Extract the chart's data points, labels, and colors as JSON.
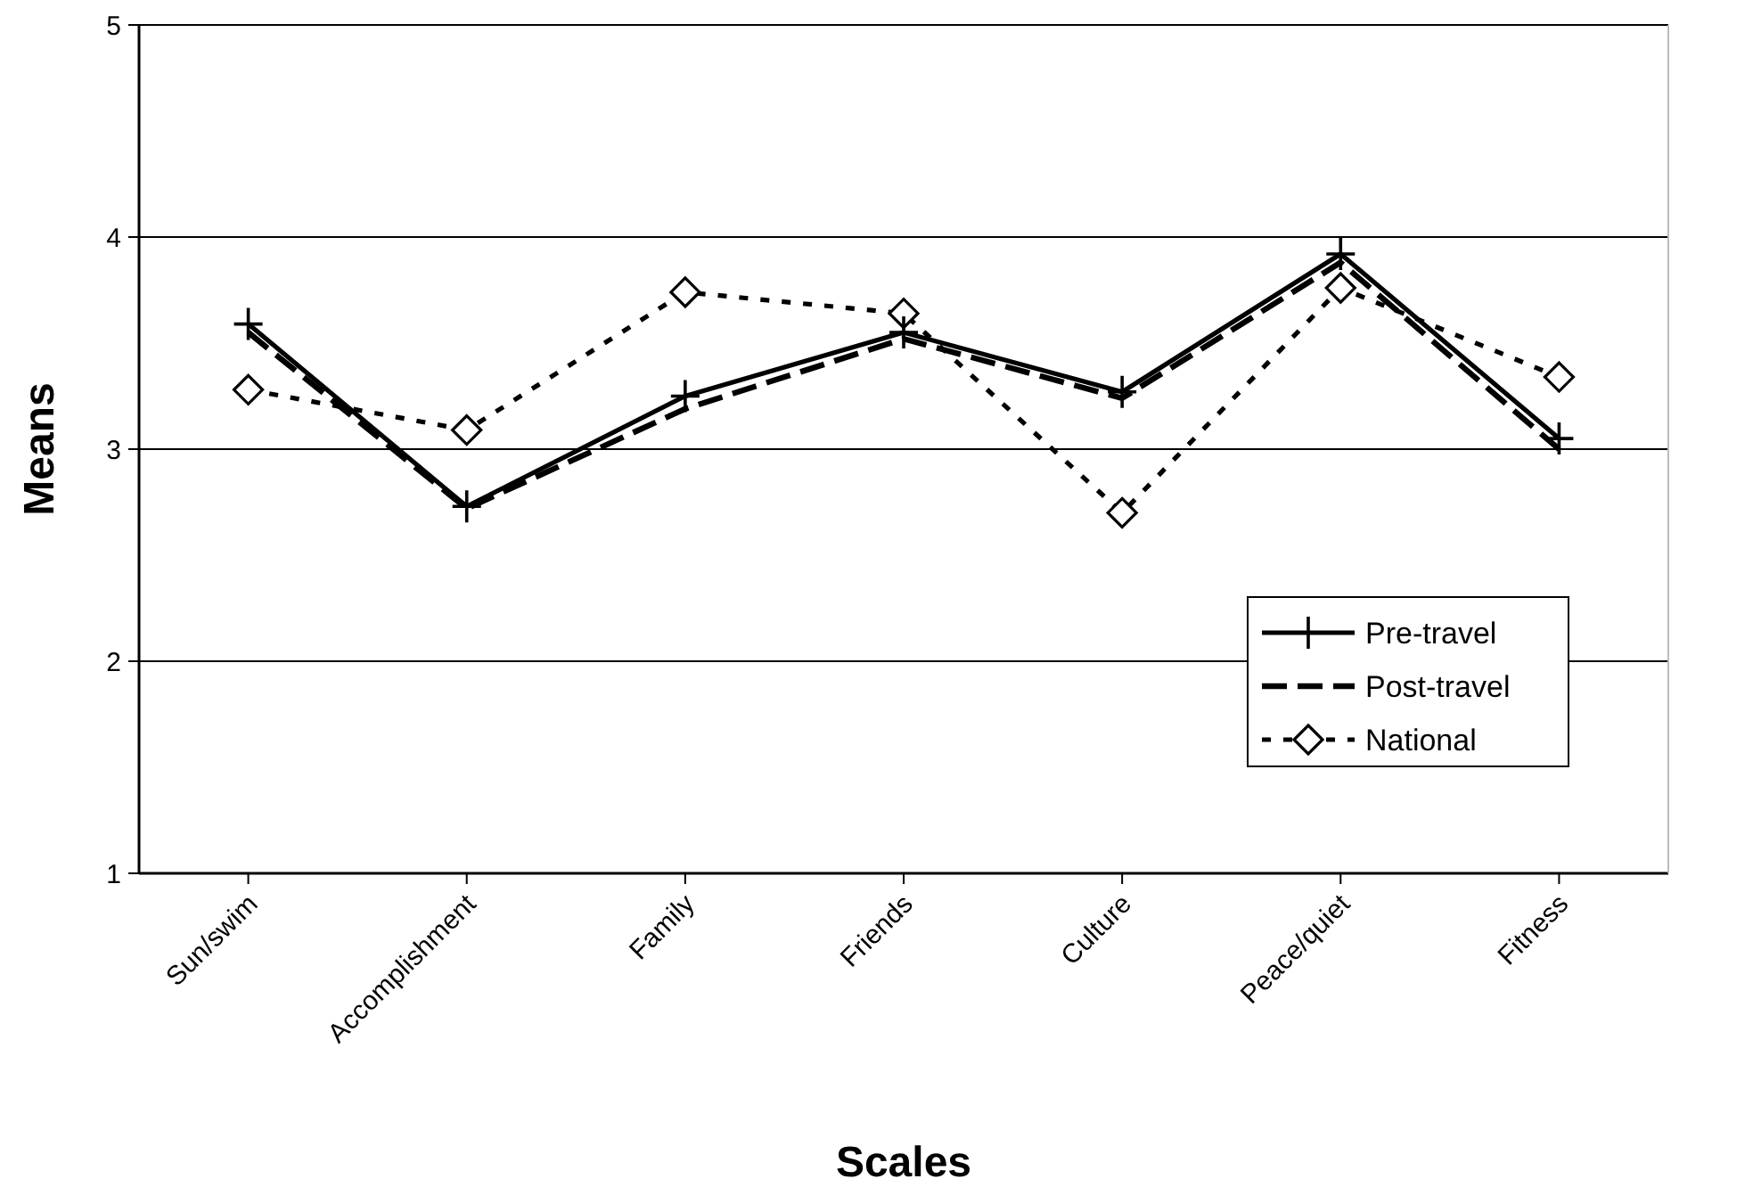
{
  "chart_data": {
    "type": "line",
    "xlabel": "Scales",
    "ylabel": "Means",
    "categories": [
      "Sun/swim",
      "Accomplishment",
      "Family",
      "Friends",
      "Culture",
      "Peace/quiet",
      "Fitness"
    ],
    "series": [
      {
        "name": "Pre-travel",
        "color": "#000000",
        "marker": "cross",
        "line_style": "solid",
        "values": [
          3.59,
          2.73,
          3.25,
          3.55,
          3.27,
          3.92,
          3.05
        ]
      },
      {
        "name": "Post-travel",
        "color": "#000000",
        "marker": "none",
        "line_style": "dashed",
        "values": [
          3.55,
          2.72,
          3.19,
          3.52,
          3.24,
          3.88,
          3.0
        ]
      },
      {
        "name": "National",
        "color": "#000000",
        "marker": "diamond",
        "line_style": "dotted",
        "values": [
          3.28,
          3.09,
          3.74,
          3.64,
          2.7,
          3.76,
          3.34
        ]
      }
    ],
    "ylim": [
      1,
      5
    ],
    "yticks": [
      1,
      2,
      3,
      4,
      5
    ],
    "grid": "y",
    "legend": "right"
  }
}
